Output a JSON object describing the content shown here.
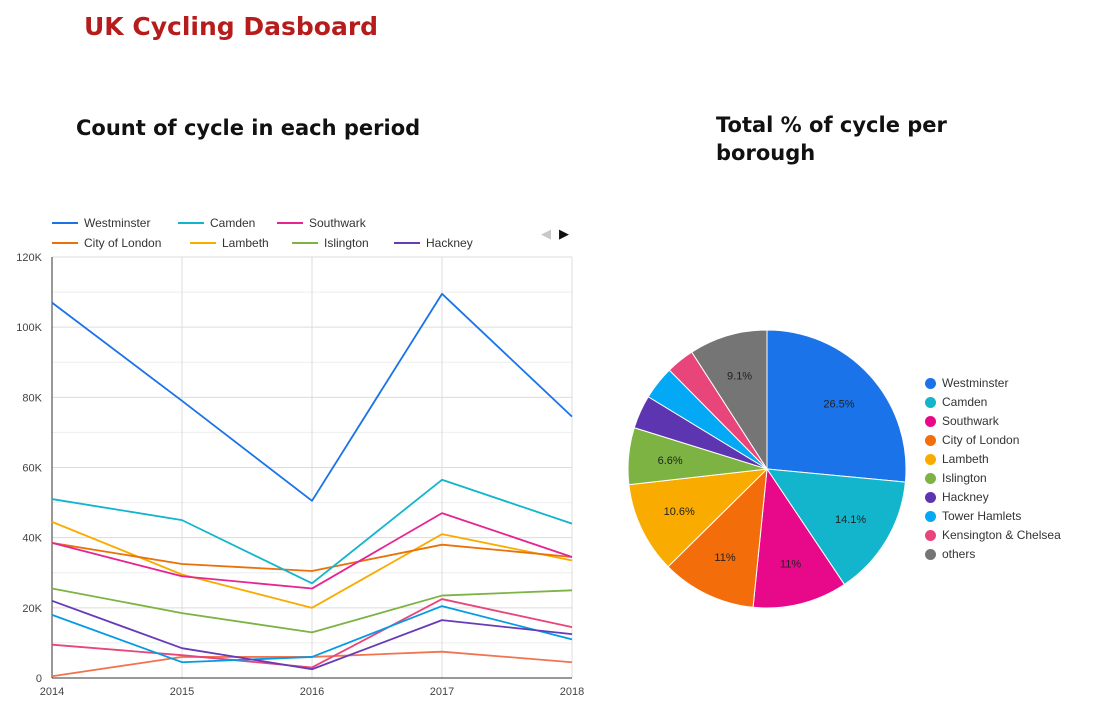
{
  "dashboard": {
    "title": "UK Cycling Dasboard"
  },
  "chart_data": [
    {
      "type": "line",
      "title": "Count of cycle in each period",
      "xlabel": "",
      "ylabel": "",
      "categories": [
        "2014",
        "2015",
        "2016",
        "2017",
        "2018"
      ],
      "ylim": [
        0,
        120000
      ],
      "yticks": [
        0,
        20000,
        40000,
        60000,
        80000,
        100000,
        120000
      ],
      "ytick_labels": [
        "0",
        "20K",
        "40K",
        "60K",
        "80K",
        "100K",
        "120K"
      ],
      "grid": true,
      "legend_position": "top",
      "series": [
        {
          "name": "Westminster",
          "color": "#1a73e8",
          "values": [
            107000,
            79000,
            50500,
            109500,
            74500
          ]
        },
        {
          "name": "Camden",
          "color": "#12b5cb",
          "values": [
            51000,
            45000,
            27000,
            56500,
            44000
          ]
        },
        {
          "name": "Southwark",
          "color": "#e52592",
          "values": [
            38500,
            29000,
            25500,
            47000,
            34500
          ]
        },
        {
          "name": "City of London",
          "color": "#e8710a",
          "values": [
            38500,
            32500,
            30500,
            38000,
            34500
          ]
        },
        {
          "name": "Lambeth",
          "color": "#f9ab00",
          "values": [
            44500,
            29500,
            20000,
            41000,
            33500
          ]
        },
        {
          "name": "Islington",
          "color": "#7cb342",
          "values": [
            25500,
            18500,
            13000,
            23500,
            25000
          ]
        },
        {
          "name": "Hackney",
          "color": "#673ab7",
          "values": [
            22000,
            8500,
            2500,
            16500,
            12500
          ]
        },
        {
          "name": "Tower Hamlets",
          "color": "#039be5",
          "values": [
            18000,
            4500,
            6000,
            20500,
            11000
          ]
        },
        {
          "name": "Kensington & Chelsea",
          "color": "#e8457a",
          "values": [
            9500,
            6500,
            3000,
            22500,
            14500
          ]
        },
        {
          "name": "others",
          "color": "#f2744f",
          "values": [
            500,
            6000,
            6000,
            7500,
            4500
          ]
        }
      ],
      "legend_series_count": 7
    },
    {
      "type": "pie",
      "title": "Total % of cycle per borough",
      "legend_position": "right",
      "slices": [
        {
          "name": "Westminster",
          "value": 26.5,
          "label": "26.5%",
          "color": "#1a73e8"
        },
        {
          "name": "Camden",
          "value": 14.1,
          "label": "14.1%",
          "color": "#12b5cb"
        },
        {
          "name": "Southwark",
          "value": 11,
          "label": "11%",
          "color": "#e8088a"
        },
        {
          "name": "City of London",
          "value": 11,
          "label": "11%",
          "color": "#f46d0b"
        },
        {
          "name": "Lambeth",
          "value": 10.6,
          "label": "10.6%",
          "color": "#f9ab00"
        },
        {
          "name": "Islington",
          "value": 6.6,
          "label": "6.6%",
          "color": "#7cb342"
        },
        {
          "name": "Hackney",
          "value": 3.9,
          "label": "",
          "color": "#5e35b1"
        },
        {
          "name": "Tower Hamlets",
          "value": 3.9,
          "label": "",
          "color": "#03a9f4"
        },
        {
          "name": "Kensington & Chelsea",
          "value": 3.3,
          "label": "",
          "color": "#e8457a"
        },
        {
          "name": "others",
          "value": 9.1,
          "label": "9.1%",
          "color": "#757575"
        }
      ]
    }
  ],
  "legend_nav": {
    "prev_icon": "◀",
    "next_icon": "▶"
  }
}
